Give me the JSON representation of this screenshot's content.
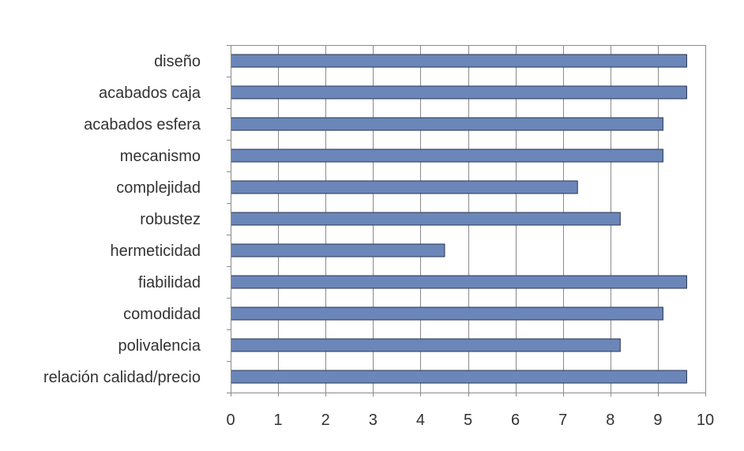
{
  "chart_data": {
    "type": "bar",
    "orientation": "horizontal",
    "categories": [
      "diseño",
      "acabados caja",
      "acabados esfera",
      "mecanismo",
      "complejidad",
      "robustez",
      "hermeticidad",
      "fiabilidad",
      "comodidad",
      "polivalencia",
      "relación calidad/precio"
    ],
    "values": [
      9.6,
      9.6,
      9.1,
      9.1,
      7.3,
      8.2,
      4.5,
      9.6,
      9.1,
      8.2,
      9.6
    ],
    "xticks": [
      "0",
      "1",
      "2",
      "3",
      "4",
      "5",
      "6",
      "7",
      "8",
      "9",
      "10"
    ],
    "xlim": [
      0,
      10
    ],
    "title": "",
    "xlabel": "",
    "ylabel": "",
    "grid": "vertical",
    "legend": "none",
    "colors": {
      "bar_fill": "#6b86b8",
      "bar_stroke": "#2b3550",
      "grid": "#8a8a8a",
      "axis": "#8a8a8a",
      "text": "#333333"
    }
  }
}
